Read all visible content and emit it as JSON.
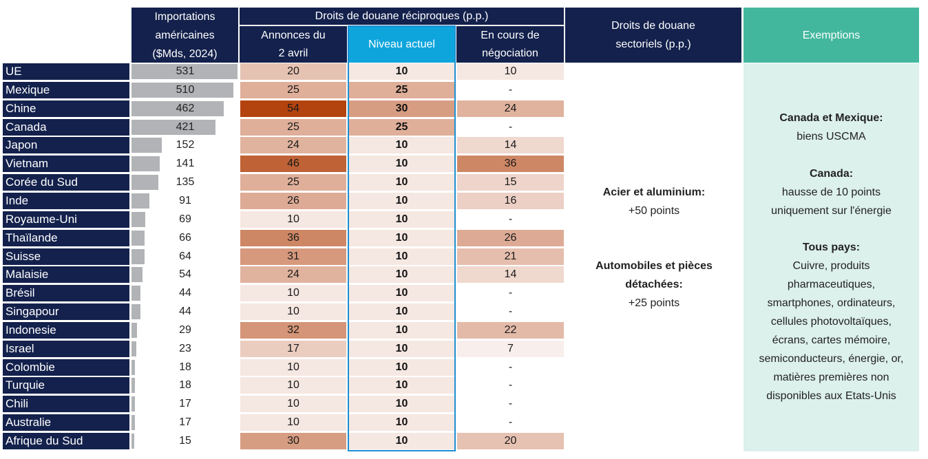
{
  "headers": {
    "imports": [
      "Importations",
      "américaines",
      "($Mds, 2024)"
    ],
    "reciprocal_group": "Droits de douane réciproques (p.p.)",
    "announced": [
      "Annonces du",
      "2 avril"
    ],
    "current": "Niveau actuel",
    "negotiation": [
      "En cours de",
      "négociation"
    ],
    "sectoral": [
      "Droits de douane",
      "sectoriels (p.p.)"
    ],
    "exemptions": "Exemptions"
  },
  "colors": {
    "navy": "#13214c",
    "current_header": "#0ea5dd",
    "exemptions_header": "#43b79e",
    "exemptions_bg": "#dcf0ec",
    "bar_grey": "#b1b3b6",
    "heat_low": "#f8eeeb",
    "heat_high": "#b3440f",
    "current_border": "#1b8fd2"
  },
  "chart_data": {
    "type": "table",
    "columns": [
      "Importations américaines ($Mds, 2024)",
      "Annonces du 2 avril",
      "Niveau actuel",
      "En cours de négociation"
    ],
    "rows": [
      {
        "country": "UE",
        "imports": 531,
        "announced": 20,
        "current": 10,
        "negotiation": "10"
      },
      {
        "country": "Mexique",
        "imports": 510,
        "announced": 25,
        "current": 25,
        "negotiation": "-"
      },
      {
        "country": "Chine",
        "imports": 462,
        "announced": 54,
        "current": 30,
        "negotiation": "24"
      },
      {
        "country": "Canada",
        "imports": 421,
        "announced": 25,
        "current": 25,
        "negotiation": "-"
      },
      {
        "country": "Japon",
        "imports": 152,
        "announced": 24,
        "current": 10,
        "negotiation": "14"
      },
      {
        "country": "Vietnam",
        "imports": 141,
        "announced": 46,
        "current": 10,
        "negotiation": "36"
      },
      {
        "country": "Corée du Sud",
        "imports": 135,
        "announced": 25,
        "current": 10,
        "negotiation": "15"
      },
      {
        "country": "Inde",
        "imports": 91,
        "announced": 26,
        "current": 10,
        "negotiation": "16"
      },
      {
        "country": "Royaume-Uni",
        "imports": 69,
        "announced": 10,
        "current": 10,
        "negotiation": "-"
      },
      {
        "country": "Thaïlande",
        "imports": 66,
        "announced": 36,
        "current": 10,
        "negotiation": "26"
      },
      {
        "country": "Suisse",
        "imports": 64,
        "announced": 31,
        "current": 10,
        "negotiation": "21"
      },
      {
        "country": "Malaisie",
        "imports": 54,
        "announced": 24,
        "current": 10,
        "negotiation": "14"
      },
      {
        "country": "Brésil",
        "imports": 44,
        "announced": 10,
        "current": 10,
        "negotiation": "-"
      },
      {
        "country": "Singapour",
        "imports": 44,
        "announced": 10,
        "current": 10,
        "negotiation": "-"
      },
      {
        "country": "Indonesie",
        "imports": 29,
        "announced": 32,
        "current": 10,
        "negotiation": "22"
      },
      {
        "country": "Israel",
        "imports": 23,
        "announced": 17,
        "current": 10,
        "negotiation": "7"
      },
      {
        "country": "Colombie",
        "imports": 18,
        "announced": 10,
        "current": 10,
        "negotiation": "-"
      },
      {
        "country": "Turquie",
        "imports": 18,
        "announced": 10,
        "current": 10,
        "negotiation": "-"
      },
      {
        "country": "Chili",
        "imports": 17,
        "announced": 10,
        "current": 10,
        "negotiation": "-"
      },
      {
        "country": "Australie",
        "imports": 17,
        "announced": 10,
        "current": 10,
        "negotiation": "-"
      },
      {
        "country": "Afrique du Sud",
        "imports": 15,
        "announced": 30,
        "current": 10,
        "negotiation": "20"
      }
    ]
  },
  "sectoral": [
    {
      "title": "Acier et aluminium:",
      "lines": [
        "+50 points"
      ]
    },
    {
      "title_lines": [
        "Automobiles et pièces",
        "détachées:"
      ],
      "lines": [
        "+25 points"
      ]
    }
  ],
  "exemptions": [
    {
      "title": "Canada et Mexique:",
      "lines": [
        "biens USCMA"
      ]
    },
    {
      "title": "Canada:",
      "lines": [
        "hausse de 10 points",
        "uniquement sur l'énergie"
      ]
    },
    {
      "title": "Tous pays:",
      "lines": [
        "Cuivre, produits",
        "pharmaceutiques,",
        "smartphones, ordinateurs,",
        "cellules photovoltaïques,",
        "écrans, cartes mémoire,",
        "semiconducteurs, énergie, or,",
        "matières premières non",
        "disponibles aux Etats-Unis"
      ]
    }
  ]
}
